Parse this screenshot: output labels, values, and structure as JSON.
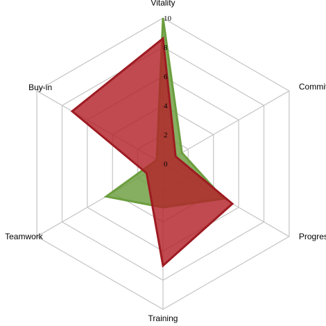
{
  "chart_data": {
    "type": "radar",
    "axes": [
      "Vitality",
      "Commitment",
      "Progress",
      "Training",
      "Teamwork",
      "Buy-in"
    ],
    "axis_labels": [
      "Vitality",
      "Commit",
      "Progres",
      "Training",
      "Teamwork",
      "Buy-in"
    ],
    "rlim": [
      0,
      10
    ],
    "ticks": [
      0,
      2,
      4,
      6,
      8,
      10
    ],
    "tick_labels": [
      "0",
      "2",
      "4",
      "6",
      "8",
      "10"
    ],
    "grid": true,
    "series": [
      {
        "name": "",
        "values": [
          10,
          1.5,
          4.8,
          3.0,
          4.5,
          0.5
        ],
        "fill": "#6b9e3e",
        "stroke": "#6b9e3e"
      },
      {
        "name": "",
        "values": [
          8.6,
          1.0,
          5.5,
          7.0,
          1.3,
          7.2
        ],
        "fill": "#b2222a",
        "stroke": "#9e1b22"
      }
    ]
  }
}
